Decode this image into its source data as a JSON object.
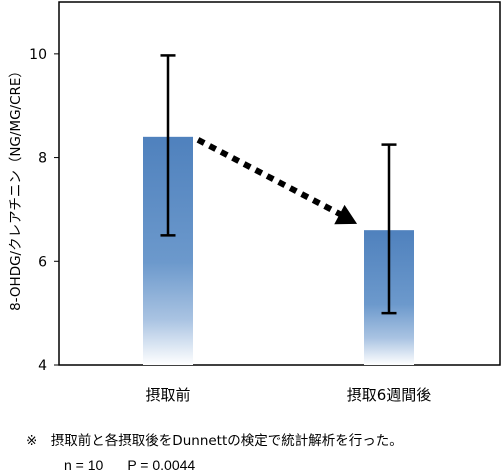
{
  "chart_data": {
    "type": "bar",
    "categories": [
      "摂取前",
      "摂取6週間後"
    ],
    "values": [
      8.4,
      6.6
    ],
    "error_bars": [
      {
        "low": 6.5,
        "high": 9.97
      },
      {
        "low": 5.0,
        "high": 8.25
      }
    ],
    "ylabel": "8-OHDG/クレアチニン（NG/MG/CRE）",
    "ylim": [
      4,
      11
    ],
    "yticks": [
      "4",
      "6",
      "8",
      "10"
    ],
    "grid": false,
    "trend_arrow": "dotted arrow from first bar to second bar"
  },
  "colors": {
    "bar_top": "#4f81bd",
    "bar_bottom": "#ffffff",
    "axis": "#000000",
    "frame": "#000000"
  },
  "footnote": {
    "note": "※　摂取前と各摂取後をDunnettの検定で統計解析を行った。",
    "n_label": "n = 10",
    "p_label": "P = 0.0044"
  }
}
